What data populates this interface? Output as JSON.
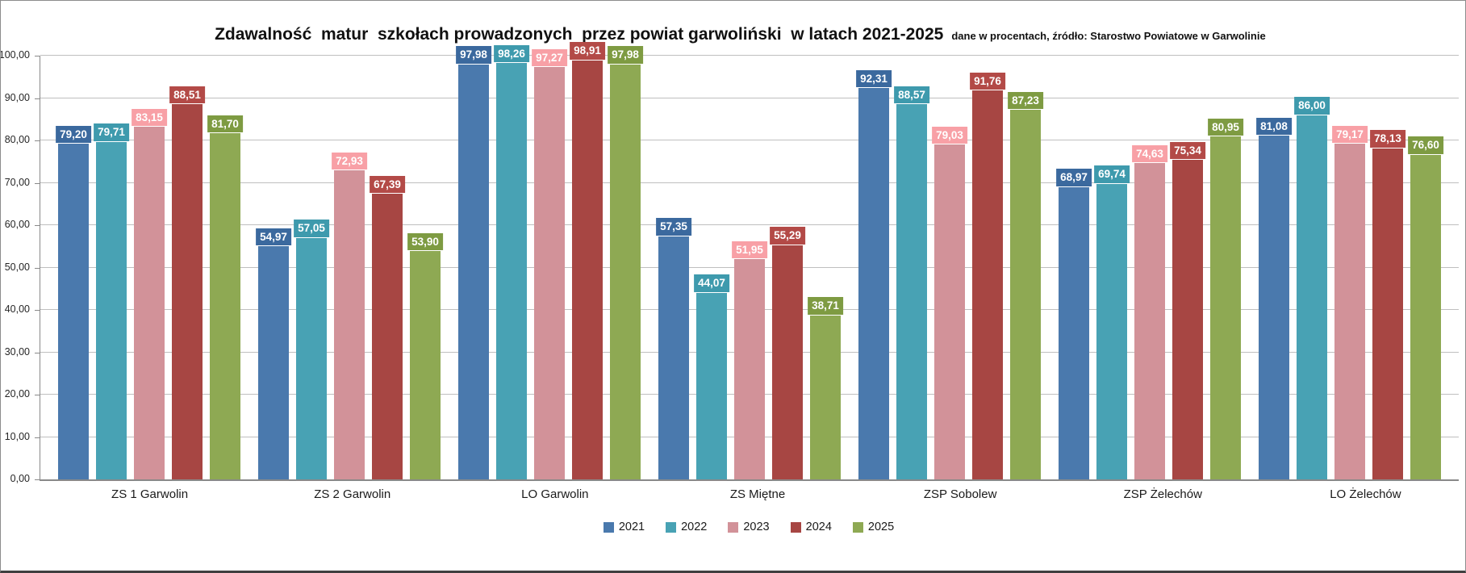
{
  "title": "Zdawalność  matur  szkołach prowadzonych  przez powiat garwoliński  w latach 2021-2025",
  "subtitle": "dane w procentach, źródło: Starostwo Powiatowe w Garwolinie",
  "colors": {
    "gridline": "#bfbfbf",
    "axis": "#898989",
    "label_text": "#ffffff"
  },
  "chart_data": {
    "type": "bar",
    "title": "Zdawalność matur szkołach prowadzonych przez powiat garwoliński w latach 2021-2025",
    "subtitle": "dane w procentach, źródło: Starostwo Powiatowe w Garwolinie",
    "categories": [
      "ZS 1 Garwolin",
      "ZS 2 Garwolin",
      "LO Garwolin",
      "ZS Miętne",
      "ZSP Sobolew",
      "ZSP Żelechów",
      "LO Żelechów"
    ],
    "series": [
      {
        "name": "2021",
        "bar_color": "#4a79ad",
        "label_bg": "#3b699e",
        "values": [
          79.2,
          54.97,
          97.98,
          57.35,
          92.31,
          68.97,
          81.08
        ]
      },
      {
        "name": "2022",
        "bar_color": "#48a2b4",
        "label_bg": "#3e9aad",
        "values": [
          79.71,
          57.05,
          98.26,
          44.07,
          88.57,
          69.74,
          86.0
        ]
      },
      {
        "name": "2023",
        "bar_color": "#d29299",
        "label_bg": "#f8a0a6",
        "values": [
          83.15,
          72.93,
          97.27,
          51.95,
          79.03,
          74.63,
          79.17
        ]
      },
      {
        "name": "2024",
        "bar_color": "#a74643",
        "label_bg": "#b34a47",
        "values": [
          88.51,
          67.39,
          98.91,
          55.29,
          91.76,
          75.34,
          78.13
        ]
      },
      {
        "name": "2025",
        "bar_color": "#8ea953",
        "label_bg": "#7e9b42",
        "values": [
          81.7,
          53.9,
          97.98,
          38.71,
          87.23,
          80.95,
          76.6
        ]
      }
    ],
    "ylim": [
      0,
      100
    ],
    "y_tick_step": 10,
    "y_tick_labels": [
      "0,00",
      "10,00",
      "20,00",
      "30,00",
      "40,00",
      "50,00",
      "60,00",
      "70,00",
      "80,00",
      "90,00",
      "100,00"
    ],
    "value_label_format": "0,00",
    "decimal_separator": ",",
    "grid": true,
    "legend_position": "bottom",
    "legend_labels": [
      "2021",
      "2022",
      "2023",
      "2024",
      "2025"
    ]
  }
}
